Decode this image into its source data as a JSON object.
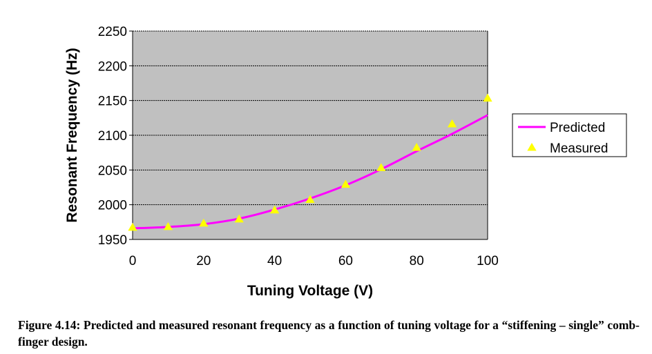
{
  "chart_data": {
    "type": "line",
    "xlabel": "Tuning Voltage (V)",
    "ylabel": "Resonant Frequency (Hz)",
    "xlim": [
      0,
      100
    ],
    "ylim": [
      1950,
      2250
    ],
    "x_ticks": [
      "0",
      "20",
      "40",
      "60",
      "80",
      "100"
    ],
    "y_ticks": [
      "1950",
      "2000",
      "2050",
      "2100",
      "2150",
      "2200",
      "2250"
    ],
    "grid": "horizontal",
    "plot_background": "#c0c0c0",
    "legend_position": "right",
    "series": [
      {
        "name": "Predicted",
        "style": "line",
        "color": "#ff00ff",
        "x": [
          0,
          10,
          20,
          30,
          40,
          50,
          60,
          70,
          80,
          90,
          100
        ],
        "y": [
          1966,
          1968,
          1972,
          1980,
          1993,
          2009,
          2028,
          2051,
          2077,
          2102,
          2129
        ]
      },
      {
        "name": "Measured",
        "style": "marker",
        "marker": "triangle",
        "color": "#ffff00",
        "x": [
          0,
          10,
          20,
          30,
          40,
          50,
          60,
          70,
          80,
          90,
          100
        ],
        "y": [
          1967,
          1968,
          1973,
          1979,
          1992,
          2007,
          2029,
          2053,
          2082,
          2116,
          2153
        ]
      }
    ]
  },
  "caption": "Figure 4.14: Predicted and measured resonant frequency as a function of tuning voltage for a “stiffening – single” comb-finger design."
}
